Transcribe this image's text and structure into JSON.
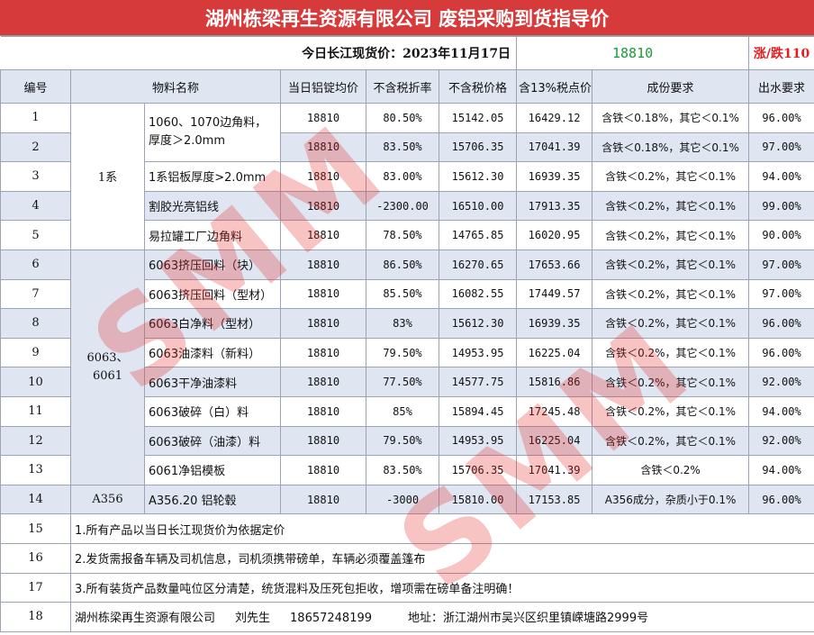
{
  "title": "湖州栋梁再生资源有限公司  废铝采购到货指导价",
  "price": {
    "label": "今日长江现货价：2023年11月17日",
    "value": "18810",
    "change": "涨/跌110"
  },
  "headers": [
    "编号",
    "物料名称",
    "当日铝锭均价",
    "不含税折率",
    "不含税价格",
    "含13%税点价",
    "成份要求",
    "出水要求"
  ],
  "groups": {
    "g1": "1系",
    "g2": "6063、6061",
    "g3": "A356"
  },
  "rows": [
    {
      "no": "1",
      "name": "1060、1070边角料，厚度＞2.0mm",
      "avg": "18810",
      "rate": "80.50%",
      "ex": "15142.05",
      "inc": "16429.12",
      "req": "含铁＜0.18%，其它＜0.1%",
      "water": "96.00%"
    },
    {
      "no": "2",
      "name": "",
      "avg": "18810",
      "rate": "83.50%",
      "ex": "15706.35",
      "inc": "17041.39",
      "req": "含铁＜0.18%，其它＜0.1%",
      "water": "97.00%"
    },
    {
      "no": "3",
      "name": "1系铝板厚度>2.0mm",
      "avg": "18810",
      "rate": "83.00%",
      "ex": "15612.30",
      "inc": "16939.35",
      "req": "含铁＜0.2%，其它＜0.1%",
      "water": "94.00%"
    },
    {
      "no": "4",
      "name": "割胶光亮铝线",
      "avg": "18810",
      "rate": "-2300.00",
      "ex": "16510.00",
      "inc": "17913.35",
      "req": "含铁＜0.2%，其它＜0.1%",
      "water": "99.00%"
    },
    {
      "no": "5",
      "name": "易拉罐工厂边角料",
      "avg": "18810",
      "rate": "78.50%",
      "ex": "14765.85",
      "inc": "16020.95",
      "req": "含铁＜0.2%，其它＜0.1%",
      "water": "90.00%"
    },
    {
      "no": "6",
      "name": "6063挤压回料（块）",
      "avg": "18810",
      "rate": "86.50%",
      "ex": "16270.65",
      "inc": "17653.66",
      "req": "含铁＜0.2%，其它＜0.1%",
      "water": "97.00%"
    },
    {
      "no": "7",
      "name": "6063挤压回料（型材）",
      "avg": "18810",
      "rate": "85.50%",
      "ex": "16082.55",
      "inc": "17449.57",
      "req": "含铁＜0.2%，其它＜0.1%",
      "water": "97.00%"
    },
    {
      "no": "8",
      "name": "6063白净料（型材）",
      "avg": "18810",
      "rate": "83%",
      "ex": "15612.30",
      "inc": "16939.35",
      "req": "含铁＜0.2%，其它＜0.1%",
      "water": "96.00%"
    },
    {
      "no": "9",
      "name": "6063油漆料（新料）",
      "avg": "18810",
      "rate": "79.50%",
      "ex": "14953.95",
      "inc": "16225.04",
      "req": "含铁＜0.2%，其它＜0.1%",
      "water": "96.00%"
    },
    {
      "no": "10",
      "name": "6063干净油漆料",
      "avg": "18810",
      "rate": "77.50%",
      "ex": "14577.75",
      "inc": "15816.86",
      "req": "含铁＜0.2%，其它＜0.1%",
      "water": "92.00%"
    },
    {
      "no": "11",
      "name": "6063破碎（白）料",
      "avg": "18810",
      "rate": "85%",
      "ex": "15894.45",
      "inc": "17245.48",
      "req": "含铁＜0.2%，其它＜0.1%",
      "water": "94.00%"
    },
    {
      "no": "12",
      "name": "6063破碎（油漆）料",
      "avg": "18810",
      "rate": "79.50%",
      "ex": "14953.95",
      "inc": "16225.04",
      "req": "含铁＜0.2%，其它＜0.1%",
      "water": "92.00%"
    },
    {
      "no": "13",
      "name": "6061净铝模板",
      "avg": "18810",
      "rate": "83.50%",
      "ex": "15706.35",
      "inc": "17041.39",
      "req": "含铁＜0.2%",
      "water": "94.00%"
    },
    {
      "no": "14",
      "name": "A356.20 铝轮毂",
      "avg": "18810",
      "rate": "-3000",
      "ex": "15810.00",
      "inc": "17153.85",
      "req": "A356成分，杂质小于0.1%",
      "water": "96.00%"
    }
  ],
  "notes": [
    {
      "no": "15",
      "text": "1.所有产品以当日长江现货价为依据定价"
    },
    {
      "no": "16",
      "text": "2.发货需报备车辆及司机信息，司机须携带磅单，车辆必须覆盖篷布"
    },
    {
      "no": "17",
      "text": "3.所有装货产品数量吨位区分清楚，统货混料及压死包拒收，增项需在磅单备注明确！"
    }
  ],
  "contact": {
    "no": "18",
    "company": "湖州栋梁再生资源有限公司",
    "person": "刘先生",
    "phone": "18657248199",
    "address": "地址：浙江湖州市吴兴区织里镇嵘塘路2999号"
  },
  "watermark": "SMM"
}
